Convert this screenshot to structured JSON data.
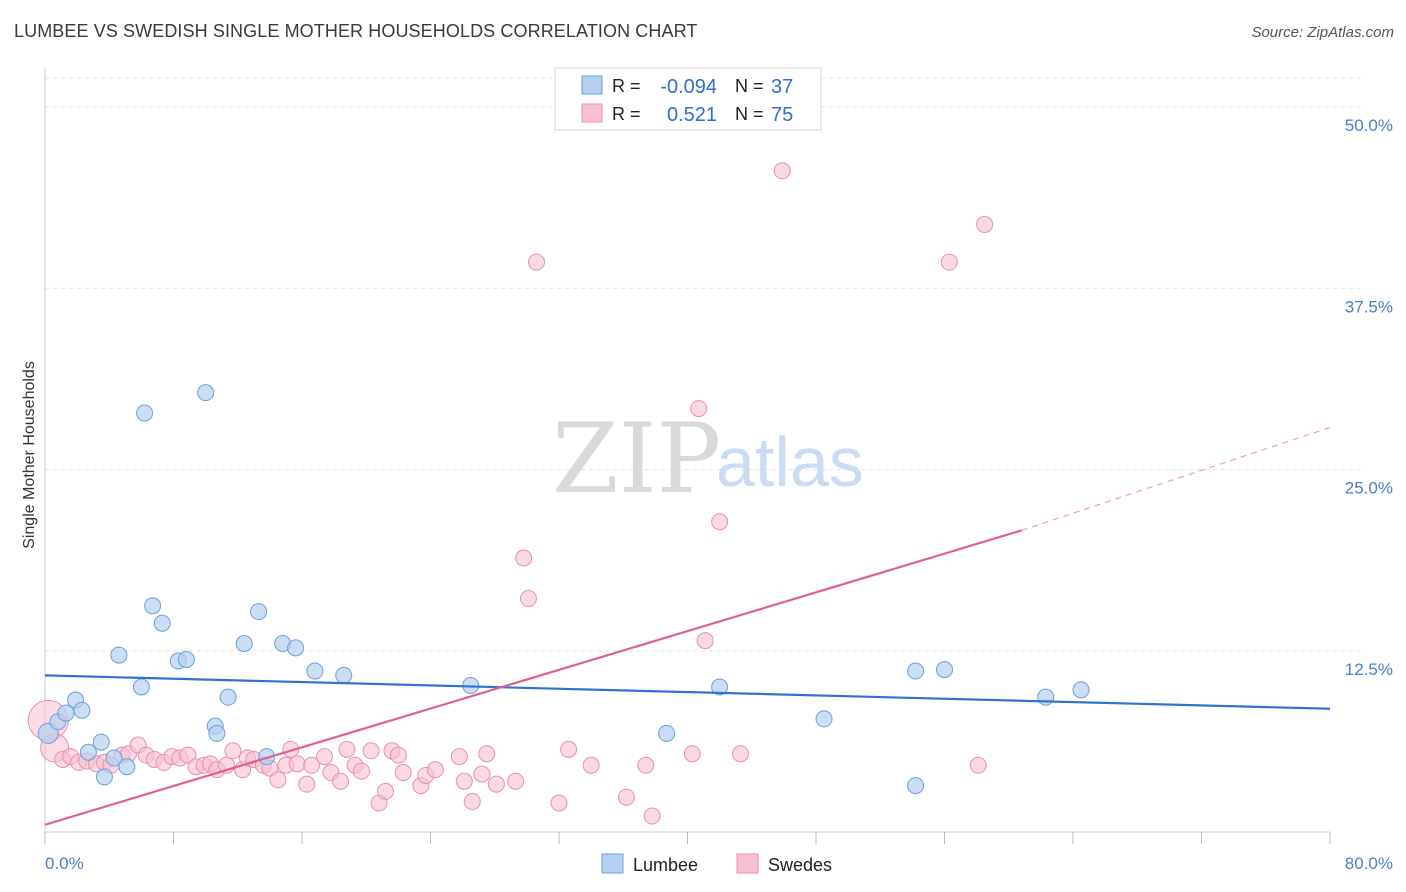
{
  "header": {
    "title": "LUMBEE VS SWEDISH SINGLE MOTHER HOUSEHOLDS CORRELATION CHART",
    "source": "Source: ZipAtlas.com"
  },
  "watermark": {
    "zip": "ZIP",
    "atlas": "atlas"
  },
  "legend_box": {
    "rows": [
      {
        "r_label": "R =",
        "r_value": "-0.094",
        "n_label": "N =",
        "n_value": "37"
      },
      {
        "r_label": "R =",
        "r_value": "0.521",
        "n_label": "N =",
        "n_value": "75"
      }
    ]
  },
  "chart_data": {
    "type": "scatter",
    "title": "LUMBEE VS SWEDISH SINGLE MOTHER HOUSEHOLDS CORRELATION CHART",
    "xlabel": "",
    "ylabel": "Single Mother Households",
    "xlim": [
      0,
      80
    ],
    "ylim": [
      0,
      52
    ],
    "x_tick_labels": [
      "0.0%",
      "80.0%"
    ],
    "y_ticks": [
      12.5,
      25.0,
      37.5,
      50.0
    ],
    "y_tick_labels": [
      "12.5%",
      "25.0%",
      "37.5%",
      "50.0%"
    ],
    "grid": true,
    "legend_position": "bottom",
    "colors": {
      "lumbee_fill": "#b5d0f0",
      "lumbee_stroke": "#6a9fe0",
      "lumbee_line": "#2f72cf",
      "swedes_fill": "#f7bfd0",
      "swedes_stroke": "#ea8fae",
      "swedes_line": "#e0608d"
    },
    "series": [
      {
        "name": "Lumbee",
        "trend": {
          "x": [
            0,
            80
          ],
          "y": [
            10.8,
            8.5
          ]
        },
        "points": [
          [
            0.2,
            6.8
          ],
          [
            0.8,
            7.6
          ],
          [
            1.3,
            8.2
          ],
          [
            1.9,
            9.1
          ],
          [
            2.3,
            8.4
          ],
          [
            2.7,
            5.5
          ],
          [
            3.5,
            6.2
          ],
          [
            3.7,
            3.8
          ],
          [
            4.3,
            5.1
          ],
          [
            4.6,
            12.2
          ],
          [
            5.1,
            4.5
          ],
          [
            6.0,
            10.0
          ],
          [
            6.2,
            28.9
          ],
          [
            6.7,
            15.6
          ],
          [
            7.3,
            14.4
          ],
          [
            8.3,
            11.8
          ],
          [
            8.8,
            11.9
          ],
          [
            10.0,
            30.3
          ],
          [
            10.6,
            7.3
          ],
          [
            10.7,
            6.8
          ],
          [
            11.4,
            9.3
          ],
          [
            12.4,
            13.0
          ],
          [
            13.3,
            15.2
          ],
          [
            13.8,
            5.2
          ],
          [
            14.8,
            13.0
          ],
          [
            15.6,
            12.7
          ],
          [
            16.8,
            11.1
          ],
          [
            18.6,
            10.8
          ],
          [
            26.5,
            10.1
          ],
          [
            38.7,
            6.8
          ],
          [
            42.0,
            10.0
          ],
          [
            48.5,
            7.8
          ],
          [
            54.2,
            3.2
          ],
          [
            54.2,
            11.1
          ],
          [
            56.0,
            11.2
          ],
          [
            62.3,
            9.3
          ],
          [
            64.5,
            9.8
          ]
        ]
      },
      {
        "name": "Swedes",
        "trend": {
          "x": [
            0,
            60.8
          ],
          "y": [
            0.5,
            20.8
          ]
        },
        "trend_dashed": {
          "x": [
            60.8,
            80
          ],
          "y": [
            20.8,
            27.9
          ]
        },
        "points": [
          [
            0.2,
            7.7
          ],
          [
            0.6,
            5.8
          ],
          [
            1.1,
            5.0
          ],
          [
            1.6,
            5.2
          ],
          [
            2.1,
            4.8
          ],
          [
            2.6,
            4.9
          ],
          [
            3.2,
            4.7
          ],
          [
            3.7,
            4.8
          ],
          [
            4.1,
            4.6
          ],
          [
            4.8,
            5.3
          ],
          [
            5.2,
            5.4
          ],
          [
            5.8,
            6.0
          ],
          [
            6.3,
            5.3
          ],
          [
            6.8,
            5.0
          ],
          [
            7.4,
            4.8
          ],
          [
            7.9,
            5.2
          ],
          [
            8.4,
            5.1
          ],
          [
            8.9,
            5.3
          ],
          [
            9.4,
            4.5
          ],
          [
            9.9,
            4.6
          ],
          [
            10.3,
            4.7
          ],
          [
            10.7,
            4.3
          ],
          [
            11.3,
            4.6
          ],
          [
            11.7,
            5.6
          ],
          [
            12.3,
            4.3
          ],
          [
            12.6,
            5.1
          ],
          [
            13.0,
            5.0
          ],
          [
            13.6,
            4.6
          ],
          [
            14.0,
            4.4
          ],
          [
            14.5,
            3.6
          ],
          [
            15.0,
            4.6
          ],
          [
            15.3,
            5.7
          ],
          [
            15.7,
            4.7
          ],
          [
            16.3,
            3.3
          ],
          [
            16.6,
            4.6
          ],
          [
            17.4,
            5.2
          ],
          [
            17.8,
            4.1
          ],
          [
            18.4,
            3.5
          ],
          [
            18.8,
            5.7
          ],
          [
            19.3,
            4.6
          ],
          [
            19.7,
            4.2
          ],
          [
            20.3,
            5.6
          ],
          [
            20.8,
            2.0
          ],
          [
            21.2,
            2.8
          ],
          [
            21.6,
            5.6
          ],
          [
            22.0,
            5.3
          ],
          [
            22.3,
            4.1
          ],
          [
            23.4,
            3.2
          ],
          [
            23.7,
            3.9
          ],
          [
            24.3,
            4.3
          ],
          [
            25.8,
            5.2
          ],
          [
            26.1,
            3.5
          ],
          [
            26.6,
            2.1
          ],
          [
            27.2,
            4.0
          ],
          [
            27.5,
            5.4
          ],
          [
            28.1,
            3.3
          ],
          [
            29.3,
            3.5
          ],
          [
            29.8,
            18.9
          ],
          [
            30.1,
            16.1
          ],
          [
            30.6,
            39.3
          ],
          [
            32.0,
            2.0
          ],
          [
            32.6,
            5.7
          ],
          [
            34.0,
            4.6
          ],
          [
            36.2,
            2.4
          ],
          [
            37.4,
            4.6
          ],
          [
            37.8,
            1.1
          ],
          [
            40.3,
            5.4
          ],
          [
            40.7,
            29.2
          ],
          [
            41.1,
            13.2
          ],
          [
            42.0,
            21.4
          ],
          [
            43.3,
            5.4
          ],
          [
            45.9,
            45.6
          ],
          [
            56.3,
            39.3
          ],
          [
            58.5,
            41.9
          ],
          [
            58.1,
            4.6
          ]
        ]
      }
    ]
  },
  "bottom_legend": {
    "items": [
      "Lumbee",
      "Swedes"
    ]
  }
}
